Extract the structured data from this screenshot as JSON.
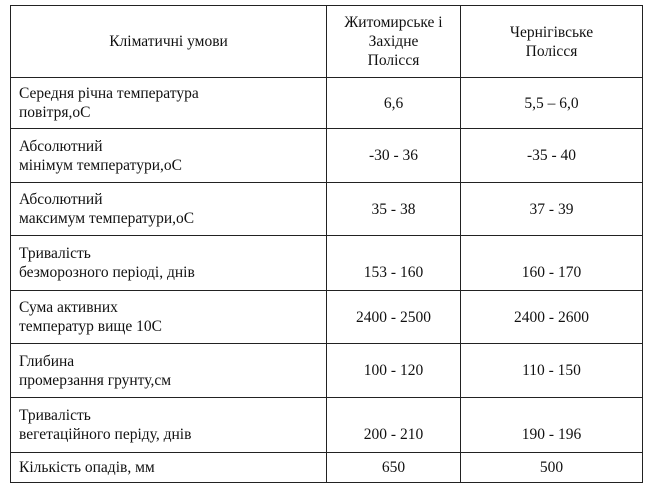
{
  "table": {
    "header": [
      [
        "Кліматичні умови"
      ],
      [
        "Житомирське і",
        "Західне",
        "Полісся"
      ],
      [
        "Чернігівське",
        "Полісся"
      ]
    ],
    "rows": [
      [
        [
          "Середня річна температура",
          "повітря,оС"
        ],
        [
          "6,6"
        ],
        [
          "5,5 – 6,0"
        ]
      ],
      [
        [
          "Абсолютний",
          "мінімум температури,оС"
        ],
        [
          "-30 - 36"
        ],
        [
          "-35 - 40"
        ]
      ],
      [
        [
          "Абсолютний",
          "максимум температури,оС"
        ],
        [
          "35 - 38"
        ],
        [
          "37 - 39"
        ]
      ],
      [
        [
          "Тривалість",
          "безморозного періоді, днів"
        ],
        [
          "153 - 160"
        ],
        [
          "160 - 170"
        ]
      ],
      [
        [
          "Сума активних",
          "температур вище 10С"
        ],
        [
          "2400 - 2500"
        ],
        [
          "2400 - 2600"
        ]
      ],
      [
        [
          "Глибина",
          "промерзання грунту,см"
        ],
        [
          "100 - 120"
        ],
        [
          "110 - 150"
        ]
      ],
      [
        [
          "Тривалість",
          "вегетаційного періду, днів"
        ],
        [
          "200 - 210"
        ],
        [
          "190 - 196"
        ]
      ],
      [
        [
          "Кількість опадів, мм"
        ],
        [
          "650"
        ],
        [
          "500"
        ]
      ]
    ]
  }
}
